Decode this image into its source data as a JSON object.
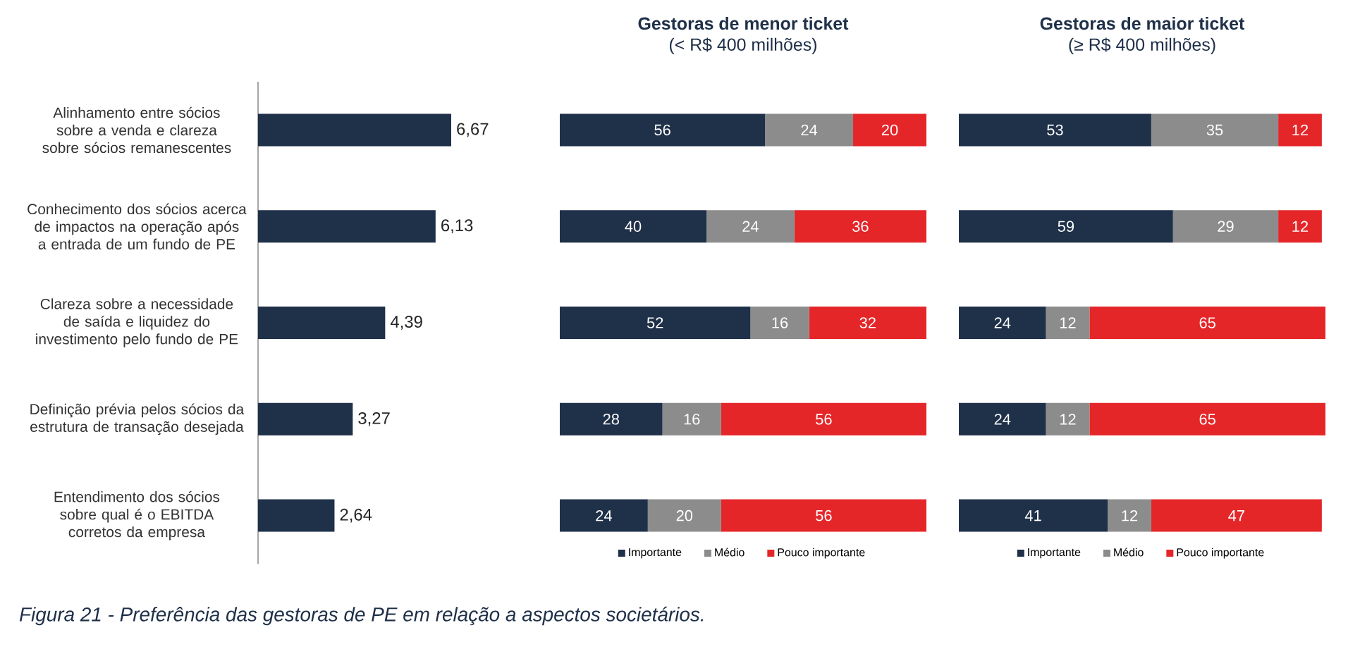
{
  "chart_data": [
    {
      "type": "bar",
      "orientation": "horizontal",
      "tick_labels": "y",
      "color": "#1f3049",
      "categories": [
        "Alinhamento entre sócios sobre a venda e clareza sobre sócios remanescentes",
        "Conhecimento dos sócios acerca de impactos na operação após a entrada de um fundo de PE",
        "Clareza sobre a necessidade de saída e liquidez do investimento pelo fundo de PE",
        "Definição prévia pelos sócios da estrutura de transação desejada",
        "Entendimento dos sócios sobre qual é o EBITDA corretos da empresa"
      ],
      "values": [
        6.67,
        6.13,
        4.39,
        3.27,
        2.64
      ],
      "value_labels": [
        "6,67",
        "6,13",
        "4,39",
        "3,27",
        "2,64"
      ],
      "annotations": [
        "Figura 21 - Preferência das gestoras de PE em relação a aspectos societários."
      ]
    },
    {
      "type": "bar",
      "orientation": "horizontal",
      "stacked": true,
      "tick_labels": false,
      "data_labels": true,
      "legend": "bottom",
      "title": "Gestoras de menor ticket",
      "subtitle": "(< R$ 400 milhões)",
      "categories": [
        null,
        null,
        null,
        null,
        null
      ],
      "series": [
        {
          "name": "Importante",
          "color": "#1f3049",
          "values": [
            56,
            40,
            52,
            28,
            24
          ]
        },
        {
          "name": "Médio",
          "color": "#8c8c8c",
          "values": [
            24,
            24,
            16,
            16,
            20
          ]
        },
        {
          "name": "Pouco importante",
          "color": "#e52629",
          "values": [
            20,
            36,
            32,
            56,
            56
          ]
        }
      ]
    },
    {
      "type": "bar",
      "orientation": "horizontal",
      "stacked": true,
      "tick_labels": false,
      "data_labels": true,
      "legend": "bottom",
      "title": "Gestoras de maior ticket",
      "subtitle": "(≥ R$ 400 milhões)",
      "categories": [
        null,
        null,
        null,
        null,
        null
      ],
      "series": [
        {
          "name": "Importante",
          "color": "#1f3049",
          "values": [
            53,
            59,
            24,
            24,
            41
          ]
        },
        {
          "name": "Médio",
          "color": "#8c8c8c",
          "values": [
            35,
            29,
            12,
            12,
            12
          ]
        },
        {
          "name": "Pouco importante",
          "color": "#e52629",
          "values": [
            12,
            12,
            65,
            65,
            47
          ]
        }
      ]
    }
  ]
}
